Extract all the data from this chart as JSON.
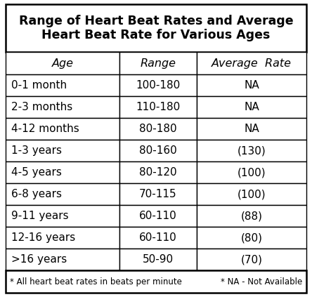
{
  "title_line1": "Range of Heart Beat Rates and Average",
  "title_line2": "Heart Beat Rate for Various Ages",
  "col_headers": [
    "Age",
    "Range",
    "Average  Rate"
  ],
  "rows": [
    [
      "0-1 month",
      "100-180",
      "NA"
    ],
    [
      "2-3 months",
      "110-180",
      "NA"
    ],
    [
      "4-12 months",
      "80-180",
      "NA"
    ],
    [
      "1-3 years",
      "80-160",
      "(130)"
    ],
    [
      "4-5 years",
      "80-120",
      "(100)"
    ],
    [
      "6-8 years",
      "70-115",
      "(100)"
    ],
    [
      "9-11 years",
      "60-110",
      "(88)"
    ],
    [
      "12-16 years",
      "60-110",
      "(80)"
    ],
    [
      ">16 years",
      "50-90",
      "(70)"
    ]
  ],
  "footer_left": "* All heart beat rates in beats per minute",
  "footer_right": "* NA - Not Available",
  "bg_color": "#ffffff",
  "title_fontsize": 12.5,
  "header_fontsize": 11.5,
  "cell_fontsize": 11.0,
  "footer_fontsize": 8.5,
  "outer_lw": 1.8,
  "inner_lw": 1.0
}
